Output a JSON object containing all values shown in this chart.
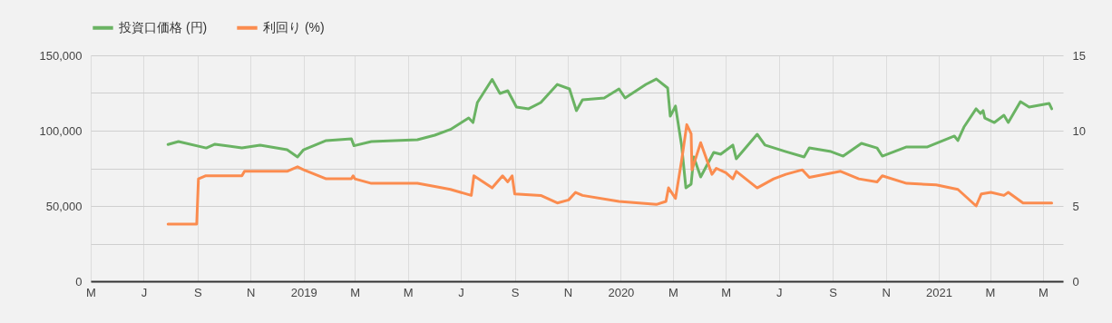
{
  "chart_data": {
    "type": "line",
    "legend": "top left",
    "grid": true,
    "xlim": [
      "2018-05-01",
      "2021-05-24"
    ],
    "xticks": [
      {
        "value": "2018-05-01",
        "label": "M"
      },
      {
        "value": "2018-07-01",
        "label": "J"
      },
      {
        "value": "2018-09-01",
        "label": "S"
      },
      {
        "value": "2018-11-01",
        "label": "N"
      },
      {
        "value": "2019-01-01",
        "label": "2019"
      },
      {
        "value": "2019-03-01",
        "label": "M"
      },
      {
        "value": "2019-05-01",
        "label": "M"
      },
      {
        "value": "2019-07-01",
        "label": "J"
      },
      {
        "value": "2019-09-01",
        "label": "S"
      },
      {
        "value": "2019-11-01",
        "label": "N"
      },
      {
        "value": "2020-01-01",
        "label": "2020"
      },
      {
        "value": "2020-03-01",
        "label": "M"
      },
      {
        "value": "2020-05-01",
        "label": "M"
      },
      {
        "value": "2020-07-01",
        "label": "J"
      },
      {
        "value": "2020-09-01",
        "label": "S"
      },
      {
        "value": "2020-11-01",
        "label": "N"
      },
      {
        "value": "2021-01-01",
        "label": "2021"
      },
      {
        "value": "2021-03-01",
        "label": "M"
      },
      {
        "value": "2021-05-01",
        "label": "M"
      }
    ],
    "ylim": [
      0,
      150000
    ],
    "yticks": [
      0,
      {
        "value": 25000,
        "label": null
      },
      {
        "value": 50000,
        "label": "50,000"
      },
      {
        "value": 75000,
        "label": null
      },
      {
        "value": 100000,
        "label": "100,000"
      },
      {
        "value": 125000,
        "label": null
      },
      {
        "value": 150000,
        "label": "150,000"
      }
    ],
    "y2lim": [
      0,
      15
    ],
    "y2ticks": [
      0,
      5,
      10,
      15
    ],
    "series": [
      {
        "name": "投資口価格 (円)",
        "color": "#6ab363",
        "x": [
          "2018-07-29",
          "2018-08-10",
          "2018-09-11",
          "2018-09-21",
          "2018-10-22",
          "2018-11-12",
          "2018-12-13",
          "2018-12-25",
          "2019-01-01",
          "2019-01-27",
          "2019-02-25",
          "2019-02-28",
          "2019-03-20",
          "2019-05-12",
          "2019-06-01",
          "2019-06-19",
          "2019-07-10",
          "2019-07-15",
          "2019-07-20",
          "2019-08-06",
          "2019-08-15",
          "2019-08-24",
          "2019-09-03",
          "2019-09-17",
          "2019-10-01",
          "2019-10-20",
          "2019-11-03",
          "2019-11-11",
          "2019-11-18",
          "2019-12-13",
          "2019-12-30",
          "2020-01-06",
          "2020-01-30",
          "2020-02-11",
          "2020-02-24",
          "2020-02-27",
          "2020-03-04",
          "2020-03-11",
          "2020-03-16",
          "2020-03-22",
          "2020-03-25",
          "2020-04-02",
          "2020-04-17",
          "2020-04-25",
          "2020-05-09",
          "2020-05-13",
          "2020-06-06",
          "2020-06-15",
          "2020-07-09",
          "2020-07-30",
          "2020-08-05",
          "2020-08-30",
          "2020-09-13",
          "2020-10-04",
          "2020-10-22",
          "2020-10-28",
          "2020-11-25",
          "2020-12-19",
          "2021-01-19",
          "2021-01-23",
          "2021-01-30",
          "2021-02-13",
          "2021-02-18",
          "2021-02-21",
          "2021-02-23",
          "2021-03-06",
          "2021-03-17",
          "2021-03-22",
          "2021-04-05",
          "2021-04-15",
          "2021-05-08",
          "2021-05-11"
        ],
        "values": [
          90800,
          92800,
          88500,
          91000,
          88500,
          90400,
          87300,
          82500,
          87300,
          93400,
          94600,
          90000,
          92800,
          94000,
          97000,
          100800,
          108400,
          105400,
          118700,
          134000,
          124700,
          126500,
          115700,
          114500,
          118700,
          130700,
          127700,
          113300,
          120500,
          121700,
          127700,
          121700,
          130700,
          134300,
          128300,
          109600,
          116300,
          90400,
          62000,
          64500,
          82500,
          69300,
          85500,
          84300,
          90400,
          81300,
          97600,
          90400,
          86100,
          82500,
          88500,
          86100,
          83100,
          91600,
          88500,
          83100,
          89200,
          89200,
          96400,
          93400,
          102400,
          114500,
          111400,
          113300,
          108400,
          105400,
          110200,
          105400,
          119300,
          115700,
          118100,
          114500
        ]
      },
      {
        "name": "利回り (%)",
        "color": "#fb8c4f",
        "axis": "y2",
        "x": [
          "2018-07-29",
          "2018-08-31",
          "2018-09-02",
          "2018-09-10",
          "2018-10-22",
          "2018-10-25",
          "2018-12-13",
          "2018-12-25",
          "2019-01-01",
          "2019-01-27",
          "2019-02-25",
          "2019-02-27",
          "2019-03-01",
          "2019-03-20",
          "2019-05-12",
          "2019-06-01",
          "2019-06-19",
          "2019-07-13",
          "2019-07-16",
          "2019-08-06",
          "2019-08-18",
          "2019-08-24",
          "2019-08-29",
          "2019-09-01",
          "2019-10-01",
          "2019-10-20",
          "2019-11-02",
          "2019-11-10",
          "2019-11-18",
          "2019-12-30",
          "2020-02-11",
          "2020-02-22",
          "2020-02-25",
          "2020-03-04",
          "2020-03-11",
          "2020-03-17",
          "2020-03-22",
          "2020-03-23",
          "2020-04-02",
          "2020-04-15",
          "2020-04-20",
          "2020-05-01",
          "2020-05-09",
          "2020-05-13",
          "2020-06-06",
          "2020-06-25",
          "2020-07-09",
          "2020-07-28",
          "2020-08-05",
          "2020-09-10",
          "2020-10-01",
          "2020-10-22",
          "2020-10-28",
          "2020-11-25",
          "2020-12-29",
          "2021-01-23",
          "2021-02-13",
          "2021-02-19",
          "2021-03-02",
          "2021-03-17",
          "2021-03-22",
          "2021-04-08",
          "2021-05-11"
        ],
        "values": [
          3.8,
          3.8,
          6.8,
          7.0,
          7.0,
          7.3,
          7.3,
          7.6,
          7.4,
          6.8,
          6.8,
          7.0,
          6.8,
          6.5,
          6.5,
          6.3,
          6.1,
          5.7,
          7.0,
          6.2,
          7.0,
          6.6,
          7.0,
          5.8,
          5.7,
          5.2,
          5.4,
          5.9,
          5.7,
          5.3,
          5.1,
          5.3,
          6.2,
          5.5,
          8.0,
          10.4,
          9.8,
          7.4,
          9.2,
          7.1,
          7.5,
          7.2,
          6.8,
          7.3,
          6.2,
          6.8,
          7.1,
          7.4,
          6.9,
          7.3,
          6.8,
          6.6,
          7.0,
          6.5,
          6.4,
          6.1,
          5.0,
          5.8,
          5.9,
          5.7,
          5.9,
          5.2,
          5.2
        ]
      }
    ]
  }
}
